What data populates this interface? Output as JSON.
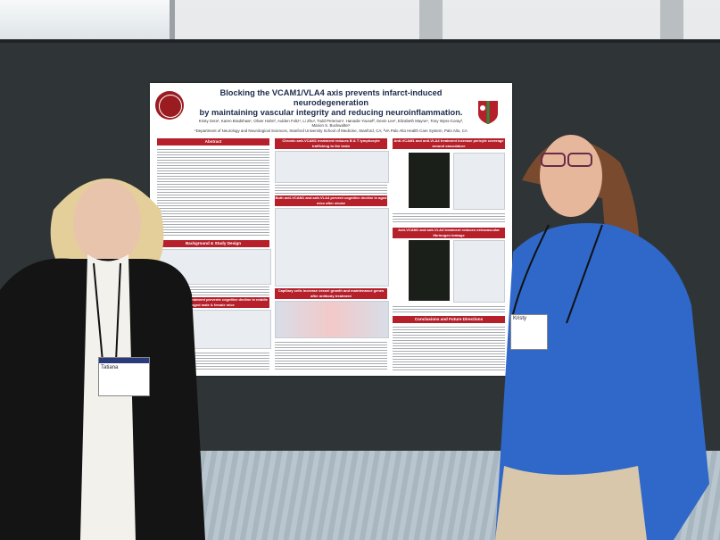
{
  "poster": {
    "title_line1": "Blocking the VCAM1/VLA4 axis prevents infarct-induced neurodegeneration",
    "title_line2": "by maintaining vascular integrity and reducing neuroinflammation.",
    "authors": "Kristy Zera¹, Karen Bradshaw¹, Oliver Hahn², Aulden Foltz¹, Li Zhu¹, Todd Peterson¹, Hanadie Yousef², Devin Lee¹, Elizabeth Mayne¹, Tony Wyss-Coray², Marion S. Buckwalter¹",
    "affiliations": "¹Department of Neurology and Neurological Sciences, Stanford University School of Medicine, Stanford, CA; ²VA Palo Alto Health Care System, Palo Alto, CA",
    "sections": {
      "abstract": "Abstract",
      "background": "Background & Study Design",
      "left_bottom": "Both anti-VCAM1 treatment prevents cognitive decline in middle aged male & female mice",
      "mid_top": "Chronic anti-VCAM1 treatment reduces B & T lymphocyte trafficking to the brain",
      "mid_mid": "Both anti-VCAM1 and anti-VLA4 prevent cognitive decline in aged mice after stroke",
      "mid_bottom": "Capillary cells increase vessel growth and maintenance genes after antibody treatment",
      "right_top": "Anti-VCAM1 and anti-VLA4 treatment increase pericyte coverage around vasculature",
      "right_mid": "Anti-VCAM1 and anti-VLA4 treatment reduces extravascular fibrinogen leakage",
      "right_bottom": "Conclusions and Future Directions"
    }
  },
  "badges": {
    "left_name": "Tatiana",
    "right_name": "Kristy"
  }
}
